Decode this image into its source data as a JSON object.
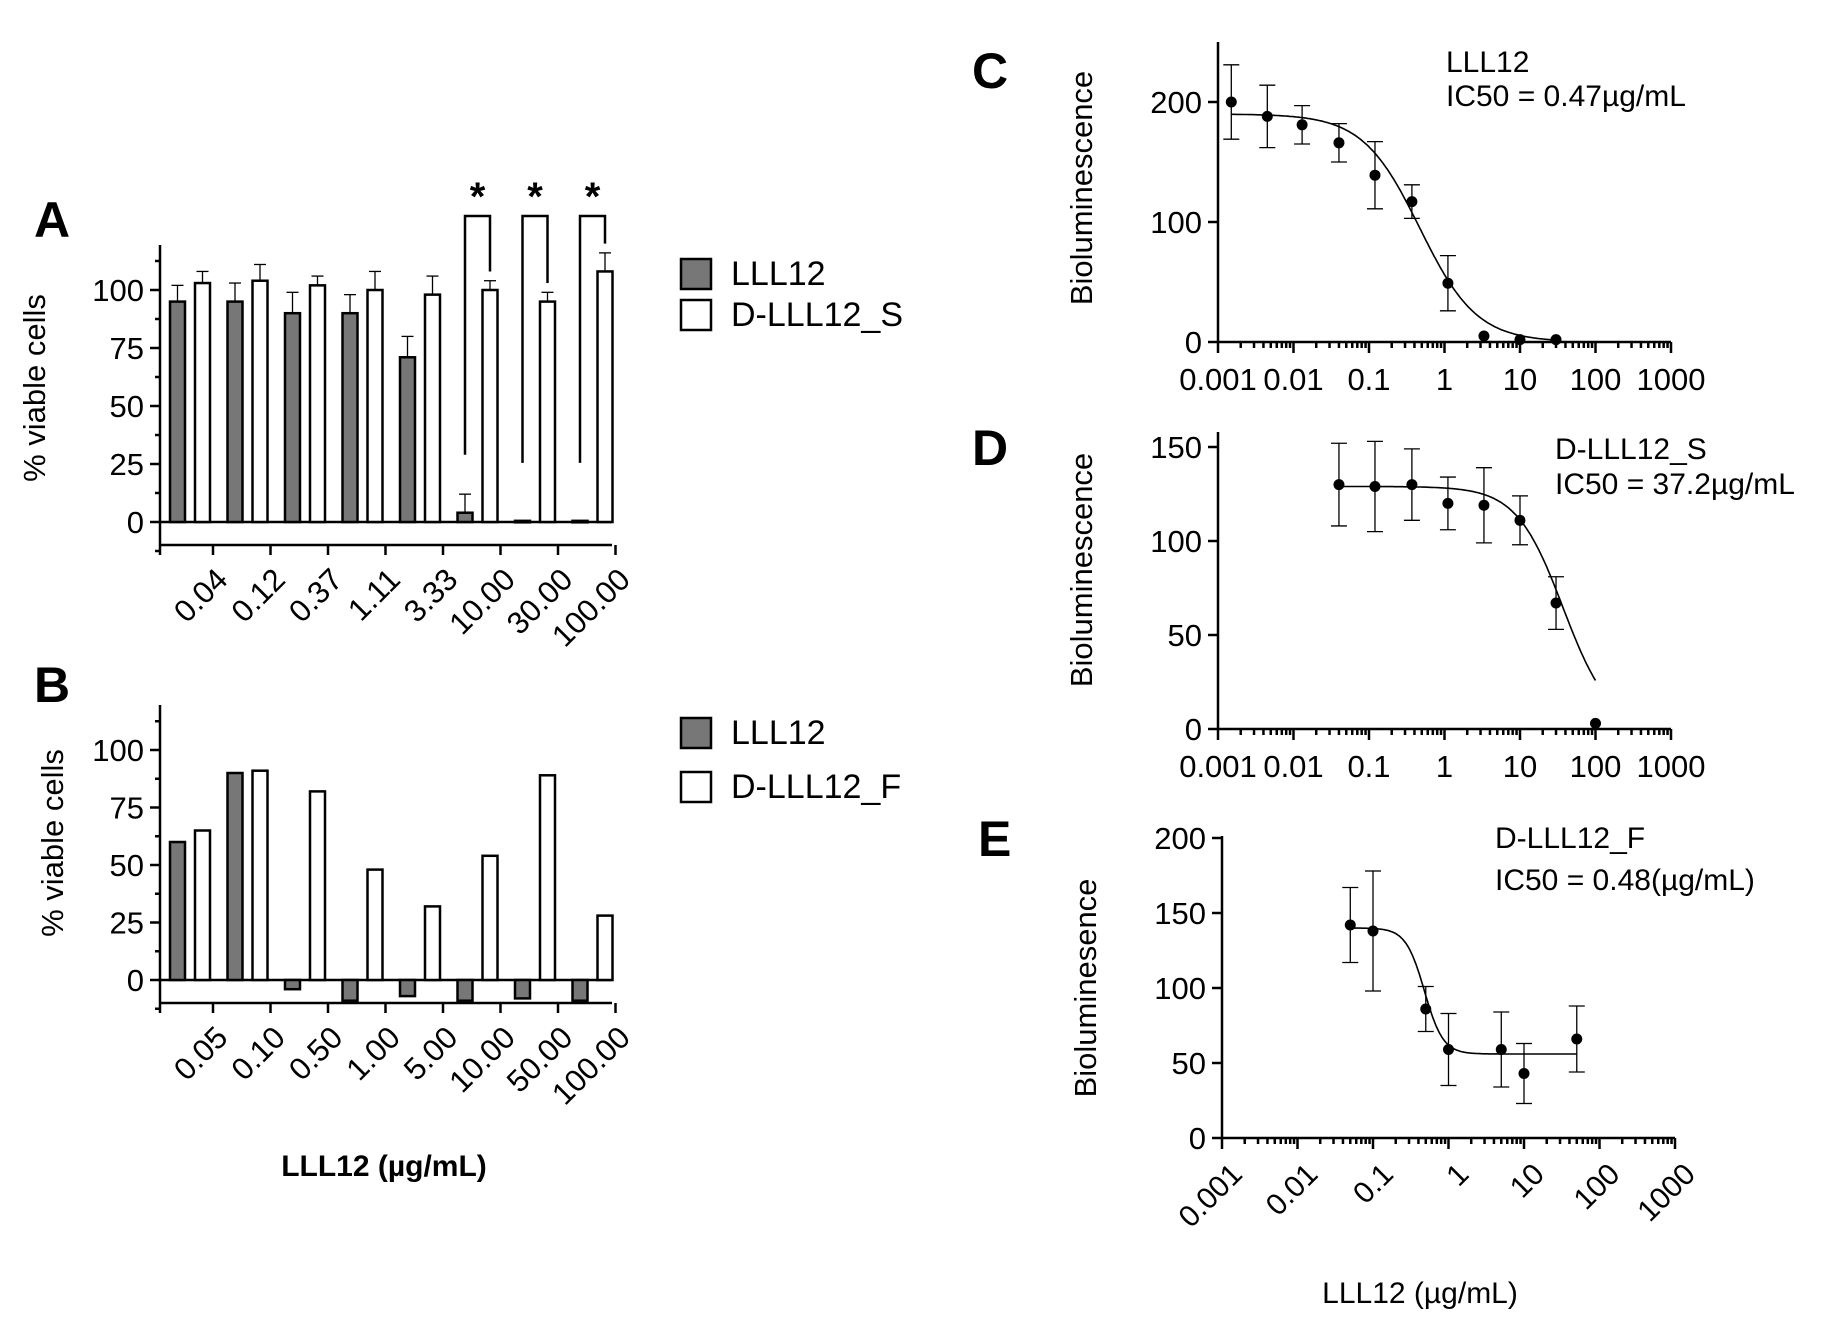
{
  "panels": {
    "A": {
      "letter": "A",
      "legend": [
        "LLL12",
        "D-LLL12_S"
      ]
    },
    "B": {
      "letter": "B",
      "legend": [
        "LLL12",
        "D-LLL12_F"
      ],
      "xtitle": "LLL12 (µg/mL)"
    },
    "C": {
      "letter": "C",
      "anno_name": "LLL12",
      "anno_ic50": "IC50 = 0.47µg/mL"
    },
    "D": {
      "letter": "D",
      "anno_name": "D-LLL12_S",
      "anno_ic50": "IC50 = 37.2µg/mL"
    },
    "E": {
      "letter": "E",
      "anno_name": "D-LLL12_F",
      "anno_ic50": "IC50 = 0.48(µg/mL)",
      "xtitle": "LLL12 (µg/mL)"
    }
  },
  "colors": {
    "filled_bar": "#777777",
    "open_bar": "#ffffff",
    "ink": "#000000"
  },
  "chart_data": [
    {
      "id": "A",
      "type": "bar",
      "ylabel": "% viable cells",
      "ylim": [
        -10,
        120
      ],
      "yticks": [
        0,
        25,
        50,
        75,
        100
      ],
      "categories": [
        "0.04",
        "0.12",
        "0.37",
        "1.11",
        "3.33",
        "10.00",
        "30.00",
        "100.00"
      ],
      "series": [
        {
          "name": "LLL12",
          "values": [
            95,
            95,
            90,
            90,
            71,
            4,
            0.5,
            0.5
          ],
          "errors": [
            7,
            8,
            9,
            8,
            9,
            8,
            0,
            0
          ]
        },
        {
          "name": "D-LLL12_S",
          "values": [
            103,
            104,
            102,
            100,
            98,
            100,
            95,
            108
          ],
          "errors": [
            5,
            7,
            4,
            8,
            8,
            4,
            4,
            8
          ]
        }
      ],
      "significance": [
        5,
        6,
        7
      ],
      "significance_label": "*",
      "legend_position": "right"
    },
    {
      "id": "B",
      "type": "bar",
      "ylabel": "% viable cells",
      "ylim": [
        -10,
        120
      ],
      "yticks": [
        0,
        25,
        50,
        75,
        100
      ],
      "categories": [
        "0.05",
        "0.10",
        "0.50",
        "1.00",
        "5.00",
        "10.00",
        "50.00",
        "100.00"
      ],
      "series": [
        {
          "name": "LLL12",
          "values": [
            60,
            90,
            -4,
            -9,
            -7,
            -9,
            -8,
            -9
          ]
        },
        {
          "name": "D-LLL12_F",
          "values": [
            65,
            91,
            82,
            48,
            32,
            54,
            89,
            28
          ]
        }
      ],
      "xlabel": "LLL12 (µg/mL)",
      "legend_position": "right"
    },
    {
      "id": "C",
      "type": "scatter",
      "xscale": "log",
      "xticks": [
        "0.001",
        "0.01",
        "0.1",
        "1",
        "10",
        "100",
        "1000"
      ],
      "ylabel": "Bioluminescence",
      "ylim": [
        0,
        250
      ],
      "yticks": [
        0,
        100,
        200
      ],
      "points": [
        {
          "x": 0.0015,
          "y": 200,
          "err": 31
        },
        {
          "x": 0.0045,
          "y": 188,
          "err": 26
        },
        {
          "x": 0.013,
          "y": 181,
          "err": 16
        },
        {
          "x": 0.04,
          "y": 166,
          "err": 16
        },
        {
          "x": 0.12,
          "y": 139,
          "err": 28
        },
        {
          "x": 0.37,
          "y": 117,
          "err": 14
        },
        {
          "x": 1.11,
          "y": 49,
          "err": 23
        },
        {
          "x": 3.33,
          "y": 5,
          "err": 0
        },
        {
          "x": 10,
          "y": 2,
          "err": 0
        },
        {
          "x": 30,
          "y": 2,
          "err": 0
        }
      ],
      "fit": {
        "top": 190,
        "bottom": 0,
        "ic50": 0.47,
        "hill": 1.15
      },
      "annotation": "IC50 = 0.47µg/mL"
    },
    {
      "id": "D",
      "type": "scatter",
      "xscale": "log",
      "xticks": [
        "0.001",
        "0.01",
        "0.1",
        "1",
        "10",
        "100",
        "1000"
      ],
      "ylabel": "Bioluminescence",
      "ylim": [
        0,
        160
      ],
      "yticks": [
        0,
        50,
        100,
        150
      ],
      "points": [
        {
          "x": 0.04,
          "y": 130,
          "err": 22
        },
        {
          "x": 0.12,
          "y": 129,
          "err": 24
        },
        {
          "x": 0.37,
          "y": 130,
          "err": 19
        },
        {
          "x": 1.11,
          "y": 120,
          "err": 14
        },
        {
          "x": 3.33,
          "y": 119,
          "err": 20
        },
        {
          "x": 10,
          "y": 111,
          "err": 13
        },
        {
          "x": 30,
          "y": 67,
          "err": 14
        },
        {
          "x": 100,
          "y": 3,
          "err": 0
        }
      ],
      "fit": {
        "top": 129,
        "bottom": 0,
        "ic50": 37.2,
        "hill": 1.4,
        "xmax": 100
      },
      "annotation": "IC50 = 37.2µg/mL"
    },
    {
      "id": "E",
      "type": "scatter",
      "xscale": "log",
      "xticks": [
        "0.001",
        "0.01",
        "0.1",
        "1",
        "10",
        "100",
        "1000"
      ],
      "ylabel": "Bioluminesence",
      "ylim": [
        0,
        200
      ],
      "yticks": [
        0,
        50,
        100,
        150,
        200
      ],
      "points": [
        {
          "x": 0.05,
          "y": 142,
          "err": 25
        },
        {
          "x": 0.1,
          "y": 138,
          "err": 40
        },
        {
          "x": 0.5,
          "y": 86,
          "err": 15
        },
        {
          "x": 1,
          "y": 59,
          "err": 24
        },
        {
          "x": 5,
          "y": 59,
          "err": 25
        },
        {
          "x": 10,
          "y": 43,
          "err": 20
        },
        {
          "x": 50,
          "y": 66,
          "err": 22
        }
      ],
      "fit": {
        "top": 140,
        "bottom": 56,
        "ic50": 0.48,
        "hill": 3.5,
        "xmax": 50
      },
      "xlabel": "LLL12 (µg/mL)",
      "annotation": "IC50 = 0.48(µg/mL)"
    }
  ]
}
